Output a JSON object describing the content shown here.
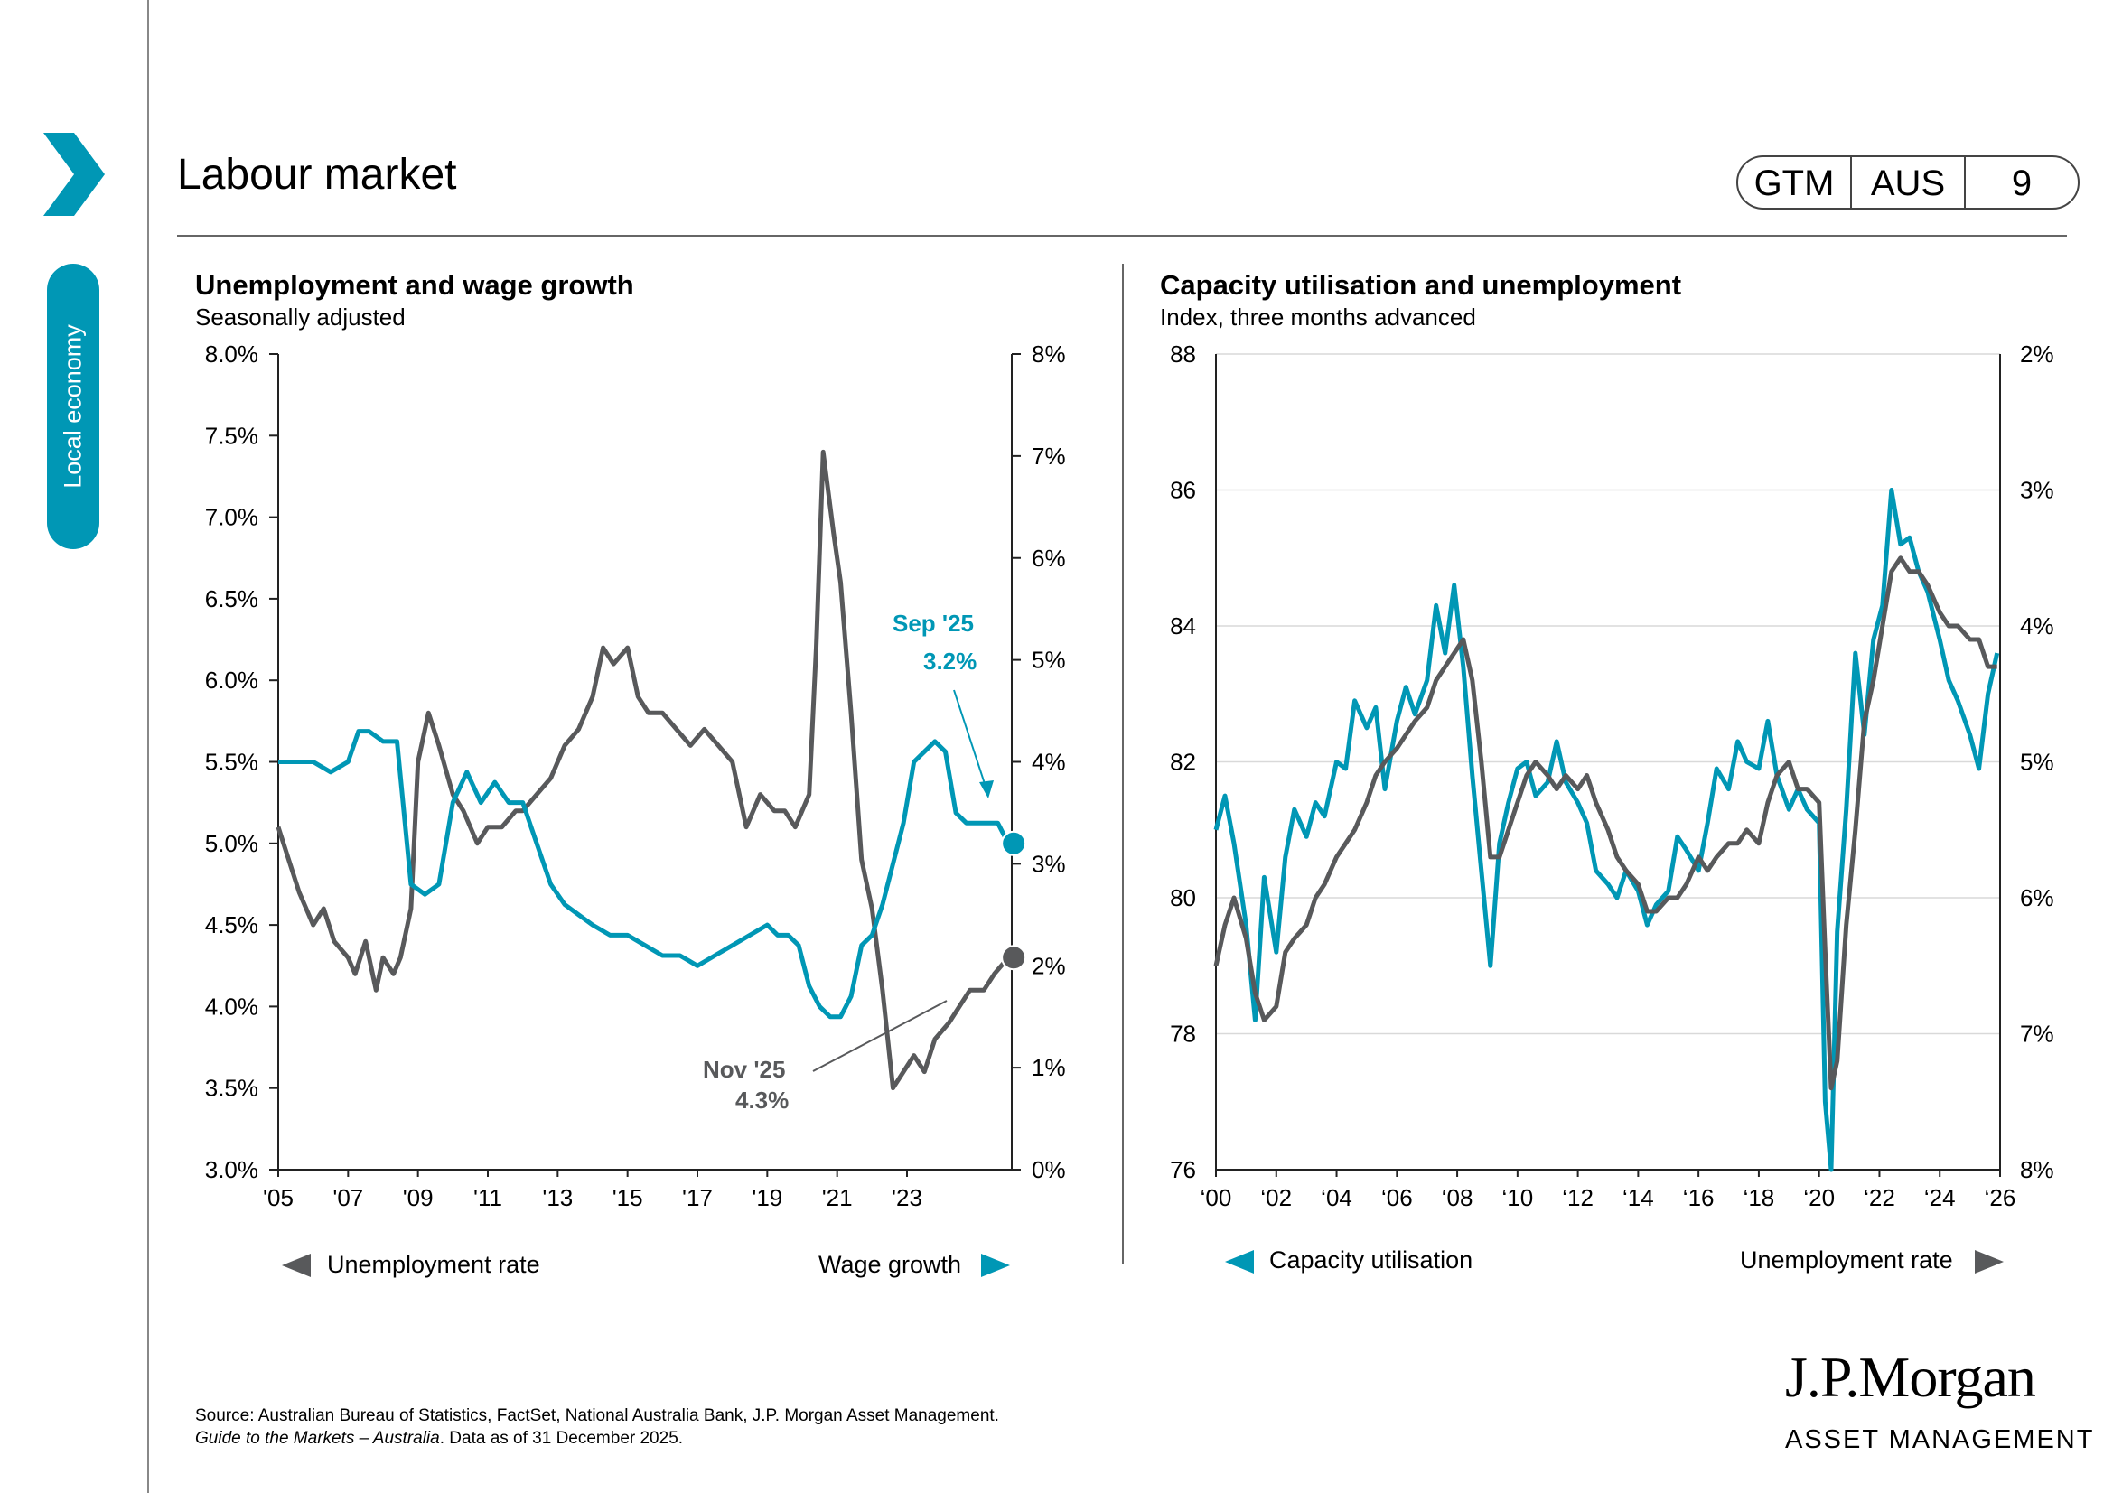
{
  "header": {
    "title": "Labour market",
    "tabs": [
      "GTM",
      "AUS",
      "9"
    ]
  },
  "sidebar": {
    "label": "Local economy"
  },
  "charts": {
    "left": {
      "title": "Unemployment and wage growth",
      "subtitle": "Seasonally adjusted",
      "legend_left": "Unemployment rate",
      "legend_right": "Wage growth",
      "annotation_wage": {
        "label": "Sep '25",
        "value": "3.2%"
      },
      "annotation_unemp": {
        "label": "Nov '25",
        "value": "4.3%"
      }
    },
    "right": {
      "title": "Capacity utilisation and unemployment",
      "subtitle": "Index, three months advanced",
      "legend_left": "Capacity utilisation",
      "legend_right": "Unemployment rate"
    }
  },
  "source": {
    "line1": "Source: Australian Bureau of Statistics, FactSet, National Australia Bank, J.P. Morgan Asset Management.",
    "line2_italic": "Guide to the Markets – Australia",
    "line2_rest": ". Data as of 31 December 2025."
  },
  "logo": {
    "name": "J.P.Morgan",
    "sub": "ASSET MANAGEMENT"
  },
  "colors": {
    "teal": "#0097b5",
    "gray": "#58595b"
  },
  "chart_data": [
    {
      "type": "line",
      "title": "Unemployment and wage growth",
      "subtitle": "Seasonally adjusted",
      "x_ticks": [
        "'05",
        "'07",
        "'09",
        "'11",
        "'13",
        "'15",
        "'17",
        "'19",
        "'21",
        "'23"
      ],
      "y_left_ticks": [
        "3.0%",
        "3.5%",
        "4.0%",
        "4.5%",
        "5.0%",
        "5.5%",
        "6.0%",
        "6.5%",
        "7.0%",
        "7.5%",
        "8.0%"
      ],
      "y_right_ticks": [
        "0%",
        "1%",
        "2%",
        "3%",
        "4%",
        "5%",
        "6%",
        "7%",
        "8%"
      ],
      "ylim_left": [
        3.0,
        8.0
      ],
      "ylim_right": [
        0,
        8
      ],
      "xlim": [
        2005,
        2026
      ],
      "series": [
        {
          "name": "Unemployment rate",
          "axis": "left",
          "color": "#58595b",
          "x": [
            2005,
            2005.3,
            2005.6,
            2006,
            2006.3,
            2006.6,
            2007,
            2007.2,
            2007.5,
            2007.8,
            2008,
            2008.3,
            2008.5,
            2008.8,
            2009,
            2009.3,
            2009.6,
            2010,
            2010.3,
            2010.7,
            2011,
            2011.4,
            2011.8,
            2012,
            2012.4,
            2012.8,
            2013.2,
            2013.6,
            2014,
            2014.3,
            2014.6,
            2015,
            2015.3,
            2015.6,
            2016,
            2016.4,
            2016.8,
            2017.2,
            2017.6,
            2018,
            2018.4,
            2018.8,
            2019.2,
            2019.5,
            2019.8,
            2020.2,
            2020.4,
            2020.6,
            2020.9,
            2021.1,
            2021.4,
            2021.7,
            2022,
            2022.3,
            2022.6,
            2022.9,
            2023.2,
            2023.5,
            2023.8,
            2024.2,
            2024.5,
            2024.8,
            2025.2,
            2025.5,
            2025.9
          ],
          "y": [
            5.1,
            4.9,
            4.7,
            4.5,
            4.6,
            4.4,
            4.3,
            4.2,
            4.4,
            4.1,
            4.3,
            4.2,
            4.3,
            4.6,
            5.5,
            5.8,
            5.6,
            5.3,
            5.2,
            5.0,
            5.1,
            5.1,
            5.2,
            5.2,
            5.3,
            5.4,
            5.6,
            5.7,
            5.9,
            6.2,
            6.1,
            6.2,
            5.9,
            5.8,
            5.8,
            5.7,
            5.6,
            5.7,
            5.6,
            5.5,
            5.1,
            5.3,
            5.2,
            5.2,
            5.1,
            5.3,
            6.2,
            7.4,
            6.9,
            6.6,
            5.8,
            4.9,
            4.6,
            4.1,
            3.5,
            3.6,
            3.7,
            3.6,
            3.8,
            3.9,
            4.0,
            4.1,
            4.1,
            4.2,
            4.3
          ]
        },
        {
          "name": "Wage growth",
          "axis": "right",
          "color": "#0097b5",
          "x": [
            2005,
            2005.5,
            2006,
            2006.5,
            2007,
            2007.3,
            2007.6,
            2008,
            2008.4,
            2008.8,
            2009.2,
            2009.6,
            2010,
            2010.4,
            2010.8,
            2011.2,
            2011.6,
            2012,
            2012.4,
            2012.8,
            2013.2,
            2013.6,
            2014,
            2014.5,
            2015,
            2015.5,
            2016,
            2016.5,
            2017,
            2017.5,
            2018,
            2018.5,
            2019,
            2019.3,
            2019.6,
            2019.9,
            2020.2,
            2020.5,
            2020.8,
            2021.1,
            2021.4,
            2021.7,
            2022,
            2022.3,
            2022.6,
            2022.9,
            2023.2,
            2023.5,
            2023.8,
            2024.1,
            2024.4,
            2024.7,
            2025.0,
            2025.3,
            2025.6,
            2025.9
          ],
          "y": [
            4.0,
            4.0,
            4.0,
            3.9,
            4.0,
            4.3,
            4.3,
            4.2,
            4.2,
            2.8,
            2.7,
            2.8,
            3.6,
            3.9,
            3.6,
            3.8,
            3.6,
            3.6,
            3.2,
            2.8,
            2.6,
            2.5,
            2.4,
            2.3,
            2.3,
            2.2,
            2.1,
            2.1,
            2.0,
            2.1,
            2.2,
            2.3,
            2.4,
            2.3,
            2.3,
            2.2,
            1.8,
            1.6,
            1.5,
            1.5,
            1.7,
            2.2,
            2.3,
            2.6,
            3.0,
            3.4,
            4.0,
            4.1,
            4.2,
            4.1,
            3.5,
            3.4,
            3.4,
            3.4,
            3.4,
            3.2
          ]
        }
      ]
    },
    {
      "type": "line",
      "title": "Capacity utilisation and unemployment",
      "subtitle": "Index, three months advanced",
      "x_ticks": [
        "‘00",
        "‘02",
        "‘04",
        "‘06",
        "‘08",
        "‘10",
        "‘12",
        "‘14",
        "‘16",
        "‘18",
        "‘20",
        "‘22",
        "‘24",
        "‘26"
      ],
      "y_left_ticks": [
        "76",
        "78",
        "80",
        "82",
        "84",
        "86",
        "88"
      ],
      "y_right_ticks": [
        "8%",
        "7%",
        "6%",
        "5%",
        "4%",
        "3%",
        "2%"
      ],
      "ylim_left": [
        76,
        88
      ],
      "ylim_right": [
        8,
        2
      ],
      "xlim": [
        2000,
        2026
      ],
      "series": [
        {
          "name": "Capacity utilisation",
          "axis": "left",
          "color": "#0097b5",
          "x": [
            2000,
            2000.3,
            2000.6,
            2001,
            2001.3,
            2001.6,
            2002,
            2002.3,
            2002.6,
            2003,
            2003.3,
            2003.6,
            2004,
            2004.3,
            2004.6,
            2005,
            2005.3,
            2005.6,
            2006,
            2006.3,
            2006.6,
            2007,
            2007.3,
            2007.6,
            2007.9,
            2008.2,
            2008.5,
            2008.8,
            2009.1,
            2009.4,
            2009.7,
            2010,
            2010.3,
            2010.6,
            2011,
            2011.3,
            2011.6,
            2012,
            2012.3,
            2012.6,
            2013,
            2013.3,
            2013.6,
            2014,
            2014.3,
            2014.6,
            2015,
            2015.3,
            2015.6,
            2016,
            2016.3,
            2016.6,
            2017,
            2017.3,
            2017.6,
            2018,
            2018.3,
            2018.6,
            2019,
            2019.3,
            2019.6,
            2020,
            2020.2,
            2020.4,
            2020.6,
            2020.9,
            2021.2,
            2021.5,
            2021.8,
            2022.1,
            2022.4,
            2022.7,
            2023,
            2023.3,
            2023.6,
            2024,
            2024.3,
            2024.6,
            2025,
            2025.3,
            2025.6,
            2025.9
          ],
          "y": [
            81.0,
            81.5,
            80.8,
            79.6,
            78.2,
            80.3,
            79.2,
            80.6,
            81.3,
            80.9,
            81.4,
            81.2,
            82.0,
            81.9,
            82.9,
            82.5,
            82.8,
            81.6,
            82.6,
            83.1,
            82.7,
            83.2,
            84.3,
            83.6,
            84.6,
            83.4,
            81.8,
            80.4,
            79.0,
            80.8,
            81.4,
            81.9,
            82.0,
            81.5,
            81.7,
            82.3,
            81.7,
            81.4,
            81.1,
            80.4,
            80.2,
            80.0,
            80.4,
            80.1,
            79.6,
            79.9,
            80.1,
            80.9,
            80.7,
            80.4,
            81.1,
            81.9,
            81.6,
            82.3,
            82.0,
            81.9,
            82.6,
            81.8,
            81.3,
            81.6,
            81.3,
            81.1,
            77.0,
            76.0,
            79.5,
            81.3,
            83.6,
            82.4,
            83.8,
            84.3,
            86.0,
            85.2,
            85.3,
            84.8,
            84.5,
            83.8,
            83.2,
            82.9,
            82.4,
            81.9,
            83.0,
            83.6
          ]
        },
        {
          "name": "Unemployment rate",
          "axis": "right",
          "color": "#58595b",
          "x": [
            2000,
            2000.3,
            2000.6,
            2001,
            2001.3,
            2001.6,
            2002,
            2002.3,
            2002.6,
            2003,
            2003.3,
            2003.6,
            2004,
            2004.3,
            2004.6,
            2005,
            2005.3,
            2005.6,
            2006,
            2006.3,
            2006.6,
            2007,
            2007.3,
            2007.6,
            2007.9,
            2008.2,
            2008.5,
            2008.8,
            2009.1,
            2009.4,
            2009.7,
            2010,
            2010.3,
            2010.6,
            2011,
            2011.3,
            2011.6,
            2012,
            2012.3,
            2012.6,
            2013,
            2013.3,
            2013.6,
            2014,
            2014.3,
            2014.6,
            2015,
            2015.3,
            2015.6,
            2016,
            2016.3,
            2016.6,
            2017,
            2017.3,
            2017.6,
            2018,
            2018.3,
            2018.6,
            2019,
            2019.3,
            2019.6,
            2020,
            2020.2,
            2020.4,
            2020.6,
            2020.9,
            2021.2,
            2021.5,
            2021.8,
            2022.1,
            2022.4,
            2022.7,
            2023,
            2023.3,
            2023.6,
            2024,
            2024.3,
            2024.6,
            2025,
            2025.3,
            2025.6,
            2025.9
          ],
          "y": [
            6.5,
            6.2,
            6.0,
            6.3,
            6.7,
            6.9,
            6.8,
            6.4,
            6.3,
            6.2,
            6.0,
            5.9,
            5.7,
            5.6,
            5.5,
            5.3,
            5.1,
            5.0,
            4.9,
            4.8,
            4.7,
            4.6,
            4.4,
            4.3,
            4.2,
            4.1,
            4.4,
            5.0,
            5.7,
            5.7,
            5.5,
            5.3,
            5.1,
            5.0,
            5.1,
            5.2,
            5.1,
            5.2,
            5.1,
            5.3,
            5.5,
            5.7,
            5.8,
            5.9,
            6.1,
            6.1,
            6.0,
            6.0,
            5.9,
            5.7,
            5.8,
            5.7,
            5.6,
            5.6,
            5.5,
            5.6,
            5.3,
            5.1,
            5.0,
            5.2,
            5.2,
            5.3,
            6.4,
            7.4,
            7.2,
            6.2,
            5.5,
            4.7,
            4.4,
            4.0,
            3.6,
            3.5,
            3.6,
            3.6,
            3.7,
            3.9,
            4.0,
            4.0,
            4.1,
            4.1,
            4.3,
            4.3
          ]
        }
      ]
    }
  ]
}
